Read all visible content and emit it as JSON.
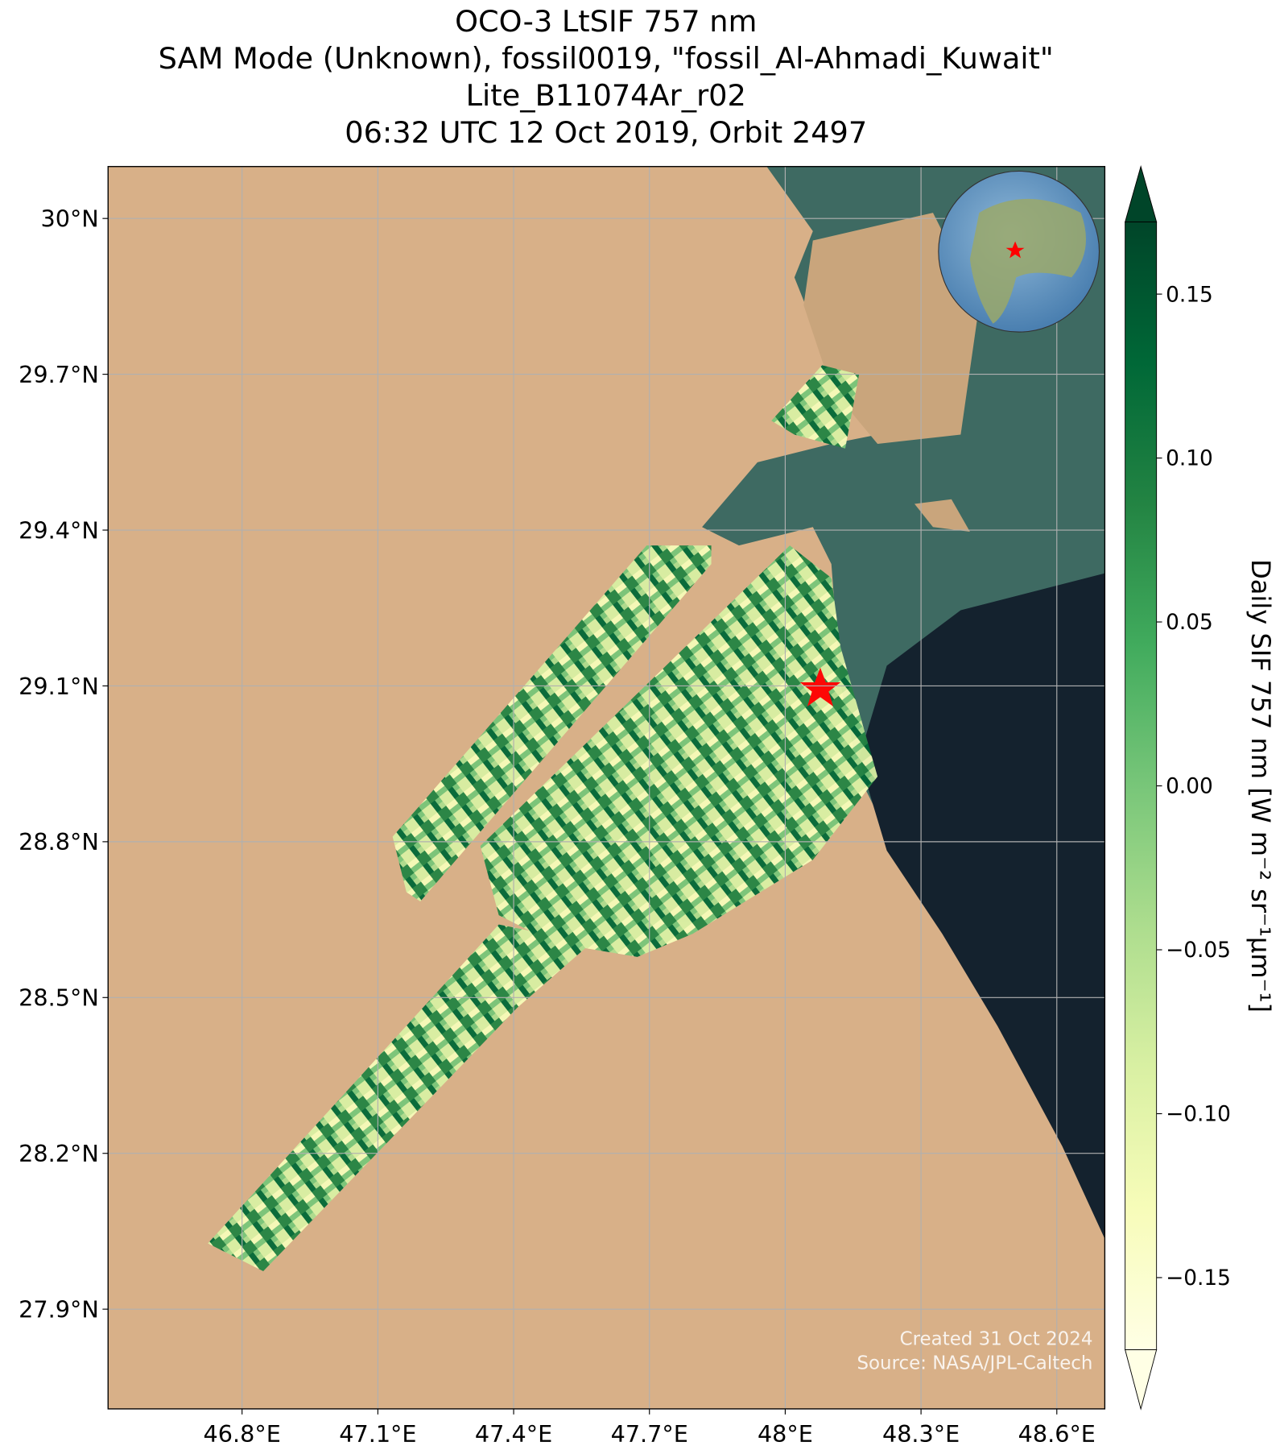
{
  "chart_data": {
    "type": "map",
    "title": [
      "OCO-3 LtSIF 757 nm",
      "SAM Mode (Unknown), fossil0019, \"fossil_Al-Ahmadi_Kuwait\"",
      "Lite_B11074Ar_r02",
      "06:32 UTC 12 Oct 2019, Orbit 2497"
    ],
    "xlim": [
      46.504,
      48.706
    ],
    "ylim": [
      27.708,
      30.1
    ],
    "xticks": [
      {
        "value": 46.8,
        "label": "46.8°E"
      },
      {
        "value": 47.1,
        "label": "47.1°E"
      },
      {
        "value": 47.4,
        "label": "47.4°E"
      },
      {
        "value": 47.7,
        "label": "47.7°E"
      },
      {
        "value": 48.0,
        "label": "48°E"
      },
      {
        "value": 48.3,
        "label": "48.3°E"
      },
      {
        "value": 48.6,
        "label": "48.6°E"
      }
    ],
    "yticks": [
      {
        "value": 27.9,
        "label": "27.9°N"
      },
      {
        "value": 28.2,
        "label": "28.2°N"
      },
      {
        "value": 28.5,
        "label": "28.5°N"
      },
      {
        "value": 28.8,
        "label": "28.8°N"
      },
      {
        "value": 29.1,
        "label": "29.1°N"
      },
      {
        "value": 29.4,
        "label": "29.4°N"
      },
      {
        "value": 29.7,
        "label": "29.7°N"
      },
      {
        "value": 30,
        "label": "30°N"
      }
    ],
    "grid": true,
    "colorbar": {
      "label": "Daily SIF 757 nm [W m⁻² sr⁻¹μm⁻¹]",
      "lim": [
        -0.172,
        0.172
      ],
      "ticks": [
        {
          "value": -0.15,
          "label": "−0.15"
        },
        {
          "value": -0.1,
          "label": "−0.10"
        },
        {
          "value": -0.05,
          "label": "−0.05"
        },
        {
          "value": 0,
          "label": "0.00"
        },
        {
          "value": 0.05,
          "label": "0.05"
        },
        {
          "value": 0.1,
          "label": "0.10"
        },
        {
          "value": 0.15,
          "label": "0.15"
        }
      ],
      "colors": [
        "#ffffe5",
        "#f7fcb9",
        "#d9f0a3",
        "#addd8e",
        "#78c679",
        "#41ab5d",
        "#238443",
        "#006837",
        "#004529"
      ],
      "extend": "both"
    },
    "credits": [
      "Created 31 Oct 2024",
      "Source: NASA/JPL-Caltech"
    ]
  }
}
